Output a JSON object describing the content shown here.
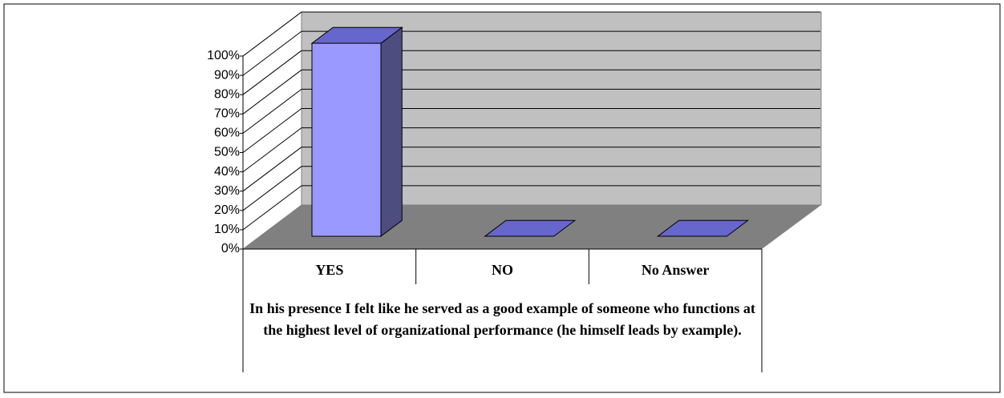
{
  "chart_data": {
    "type": "bar3d",
    "x_label": "In his presence I felt like he served as a good example of someone who functions at the highest level of organizational performance (he himself leads by example).",
    "categories": [
      "YES",
      "NO",
      "No Answer"
    ],
    "values": [
      100,
      0,
      0
    ],
    "color": "#9999ff",
    "ylim": [
      0,
      100
    ],
    "yticks": [
      {
        "value": 0,
        "label": "0%"
      },
      {
        "value": 10,
        "label": "10%"
      },
      {
        "value": 20,
        "label": "20%"
      },
      {
        "value": 30,
        "label": "30%"
      },
      {
        "value": 40,
        "label": "40%"
      },
      {
        "value": 50,
        "label": "50%"
      },
      {
        "value": 60,
        "label": "60%"
      },
      {
        "value": 70,
        "label": "70%"
      },
      {
        "value": 80,
        "label": "80%"
      },
      {
        "value": 90,
        "label": "90%"
      },
      {
        "value": 100,
        "label": "100%"
      }
    ],
    "grid": true
  }
}
